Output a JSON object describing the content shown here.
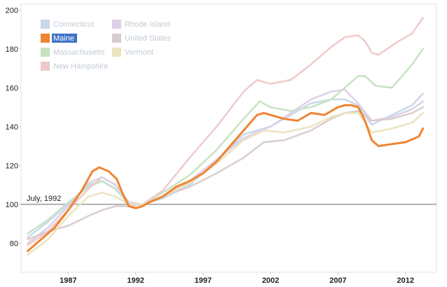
{
  "chart_data": {
    "type": "line",
    "title": "",
    "xlabel": "",
    "ylabel": "",
    "xlim": [
      1983.5,
      2014.3
    ],
    "ylim": [
      65,
      203
    ],
    "x_ticks": [
      1987,
      1992,
      1997,
      2002,
      2007,
      2012
    ],
    "x_tick_labels": [
      "1987",
      "1992",
      "1997",
      "2002",
      "2007",
      "2012"
    ],
    "y_ticks": [
      80,
      100,
      120,
      140,
      160,
      180,
      200
    ],
    "y_tick_labels": [
      "80",
      "100",
      "120",
      "140",
      "160",
      "180",
      "200"
    ],
    "grid": false,
    "legend_position": "top-left",
    "reference_line": {
      "y": 100,
      "label": "July, 1992"
    },
    "highlighted_series": "Maine",
    "series": [
      {
        "name": "Connecticut",
        "color": "#c7d8ea",
        "x": [
          1984.0,
          1985.5,
          1987.0,
          1988.5,
          1989.5,
          1990.5,
          1991.5,
          1992.5,
          1994.0,
          1996.0,
          1998.0,
          2000.0,
          2002.0,
          2003.5,
          2005.0,
          2006.5,
          2007.5,
          2008.5,
          2009.5,
          2011.0,
          2012.5,
          2013.3
        ],
        "y": [
          83,
          91,
          100,
          110,
          112,
          108,
          100,
          100,
          103,
          110,
          122,
          136,
          140,
          146,
          152,
          154,
          154,
          151,
          141,
          146,
          151,
          157
        ]
      },
      {
        "name": "Maine",
        "color": "#f08432",
        "x": [
          1984.0,
          1985.0,
          1986.0,
          1987.0,
          1988.0,
          1988.8,
          1989.3,
          1990.0,
          1990.6,
          1991.0,
          1991.5,
          1992.0,
          1992.5,
          1993.0,
          1994.0,
          1995.0,
          1996.0,
          1997.0,
          1998.0,
          1999.0,
          2000.0,
          2001.0,
          2001.5,
          2002.0,
          2002.5,
          2003.0,
          2004.0,
          2005.0,
          2006.0,
          2007.0,
          2007.5,
          2008.0,
          2008.5,
          2009.0,
          2009.5,
          2010.0,
          2011.0,
          2012.0,
          2012.7,
          2013.0,
          2013.3
        ],
        "y": [
          76,
          82,
          88,
          97,
          107,
          117,
          119,
          117,
          113,
          106,
          99,
          98,
          99,
          101,
          104,
          109,
          112,
          116,
          122,
          130,
          138,
          146,
          147,
          146,
          145,
          144,
          143,
          147,
          146,
          150,
          151,
          151,
          150,
          143,
          133,
          130,
          131,
          132,
          134,
          135,
          139
        ]
      },
      {
        "name": "Massachusetts",
        "color": "#c6e2c1",
        "x": [
          1984.0,
          1985.5,
          1987.0,
          1988.5,
          1989.5,
          1990.5,
          1991.5,
          1992.5,
          1994.0,
          1996.0,
          1998.0,
          2000.0,
          2001.2,
          2002.0,
          2003.5,
          2005.0,
          2006.5,
          2007.5,
          2008.5,
          2009.0,
          2009.8,
          2011.0,
          2012.5,
          2013.3
        ],
        "y": [
          85,
          92,
          101,
          109,
          112,
          108,
          100,
          100,
          106,
          115,
          128,
          144,
          153,
          150,
          148,
          150,
          154,
          160,
          166,
          166,
          161,
          160,
          172,
          180
        ]
      },
      {
        "name": "New Hampshire",
        "color": "#efc9c9",
        "x": [
          1984.0,
          1985.5,
          1987.0,
          1988.5,
          1989.5,
          1990.5,
          1991.5,
          1992.5,
          1994.0,
          1996.0,
          1998.0,
          2000.0,
          2001.0,
          2002.0,
          2003.5,
          2005.0,
          2006.5,
          2007.5,
          2008.5,
          2009.0,
          2009.5,
          2010.0,
          2011.5,
          2012.5,
          2013.3
        ],
        "y": [
          79,
          86,
          97,
          108,
          114,
          110,
          101,
          100,
          107,
          124,
          140,
          158,
          164,
          162,
          164,
          172,
          181,
          186,
          187,
          184,
          178,
          177,
          184,
          188,
          196
        ]
      },
      {
        "name": "Rhode Island",
        "color": "#dcd0e6",
        "x": [
          1984.0,
          1985.5,
          1987.0,
          1988.5,
          1989.5,
          1990.5,
          1991.5,
          1992.5,
          1994.0,
          1996.0,
          1998.0,
          2000.0,
          2002.0,
          2003.5,
          2005.0,
          2006.5,
          2007.5,
          2008.5,
          2009.5,
          2011.0,
          2012.5,
          2013.3
        ],
        "y": [
          80,
          88,
          99,
          111,
          114,
          110,
          101,
          100,
          104,
          112,
          123,
          134,
          140,
          147,
          154,
          158,
          159,
          152,
          143,
          145,
          149,
          153
        ]
      },
      {
        "name": "United States",
        "color": "#d9cccc",
        "x": [
          1984.0,
          1985.5,
          1987.0,
          1988.5,
          1989.5,
          1990.5,
          1991.5,
          1992.5,
          1994.0,
          1996.0,
          1998.0,
          2000.0,
          2001.5,
          2003.0,
          2005.0,
          2006.5,
          2007.5,
          2008.5,
          2009.5,
          2011.0,
          2012.5,
          2013.3
        ],
        "y": [
          82,
          86,
          89,
          94,
          97,
          99,
          99,
          100,
          104,
          109,
          116,
          124,
          132,
          133,
          138,
          144,
          147,
          148,
          143,
          144,
          147,
          150
        ]
      },
      {
        "name": "Vermont",
        "color": "#ece4bd",
        "x": [
          1984.0,
          1985.5,
          1987.0,
          1988.5,
          1989.5,
          1990.5,
          1991.5,
          1992.5,
          1994.0,
          1996.0,
          1998.0,
          2000.0,
          2001.5,
          2003.0,
          2005.0,
          2006.5,
          2007.5,
          2008.5,
          2009.5,
          2011.0,
          2012.5,
          2013.3
        ],
        "y": [
          74,
          82,
          94,
          104,
          106,
          104,
          100,
          100,
          104,
          111,
          121,
          133,
          138,
          137,
          140,
          145,
          147,
          147,
          137,
          139,
          142,
          147
        ]
      }
    ]
  },
  "legend": {
    "items": [
      {
        "label": "Connecticut",
        "color": "#c7d8ea",
        "text_color": "#c2cbd4",
        "selected": false
      },
      {
        "label": "Maine",
        "color": "#f08432",
        "text_color": "#ffffff",
        "selected": true,
        "highlight_bg": "#3d72c7"
      },
      {
        "label": "Massachusetts",
        "color": "#c6e2c1",
        "text_color": "#c2cbd4",
        "selected": false
      },
      {
        "label": "New Hampshire",
        "color": "#efc9c9",
        "text_color": "#c2cbd4",
        "selected": false
      },
      {
        "label": "Rhode Island",
        "color": "#dcd0e6",
        "text_color": "#c2cbd4",
        "selected": false
      },
      {
        "label": "United States",
        "color": "#d9cccc",
        "text_color": "#c2cbd4",
        "selected": false
      },
      {
        "label": "Vermont",
        "color": "#ece4bd",
        "text_color": "#c2cbd4",
        "selected": false
      }
    ]
  }
}
